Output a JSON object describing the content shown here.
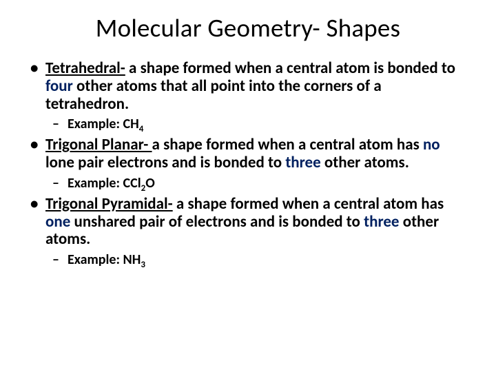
{
  "title": "Molecular Geometry- Shapes",
  "highlight_color": "#002060",
  "items": [
    {
      "term": "Tetrahedral-",
      "def_parts": [
        " a shape formed when a central atom is bonded to ",
        "four",
        " other atoms that all point into the corners of a tetrahedron."
      ],
      "def_bold_idx": 1,
      "example_prefix": "Example: CH",
      "example_sub": "4"
    },
    {
      "term": "Trigonal Planar- ",
      "def_parts": [
        "a shape formed when a central atom has ",
        "no",
        " lone pair electrons and is bonded to ",
        "three",
        " other atoms."
      ],
      "def_bold_idx": [
        1,
        3
      ],
      "example_prefix": "Example: CCl",
      "example_sub": "2",
      "example_suffix": "O"
    },
    {
      "term": "Trigonal Pyramidal-",
      "def_parts": [
        " a shape formed when a central atom has ",
        "one",
        " unshared pair of electrons and is bonded to ",
        "three",
        " other atoms."
      ],
      "def_bold_idx": [
        1,
        3
      ],
      "example_prefix": "Example: NH",
      "example_sub": "3"
    }
  ]
}
